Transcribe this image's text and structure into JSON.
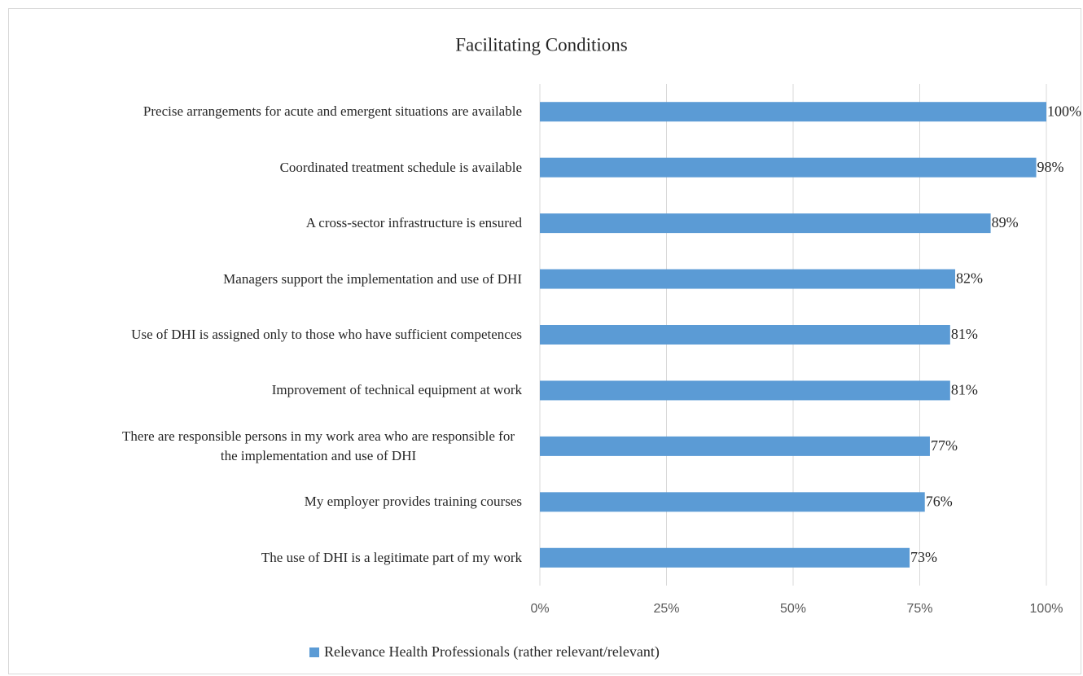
{
  "chart_data": {
    "type": "bar",
    "orientation": "horizontal",
    "title": "Facilitating Conditions",
    "categories": [
      "Precise arrangements for acute and emergent situations are available",
      "Coordinated treatment schedule is available",
      "A cross-sector infrastructure is ensured",
      "Managers support the implementation and use of DHI",
      "Use of DHI is assigned only to those who have sufficient competences",
      "Improvement of technical equipment at work",
      "There are responsible persons in my work area who are responsible for the implementation and use of DHI",
      "My employer provides training courses",
      "The use of DHI is a legitimate part of my work"
    ],
    "series": [
      {
        "name": "Relevance Health Professionals (rather relevant/relevant)",
        "color": "#5b9bd5",
        "values": [
          100,
          98,
          89,
          82,
          81,
          81,
          77,
          76,
          73
        ],
        "value_labels": [
          "100%",
          "98%",
          "89%",
          "82%",
          "81%",
          "81%",
          "77%",
          "76%",
          "73%"
        ]
      }
    ],
    "xlim": [
      0,
      100
    ],
    "xticks": [
      {
        "value": 0,
        "label": "0%"
      },
      {
        "value": 25,
        "label": "25%"
      },
      {
        "value": 50,
        "label": "50%"
      },
      {
        "value": 75,
        "label": "75%"
      },
      {
        "value": 100,
        "label": "100%"
      }
    ],
    "grid": true,
    "legend": "bottom"
  }
}
